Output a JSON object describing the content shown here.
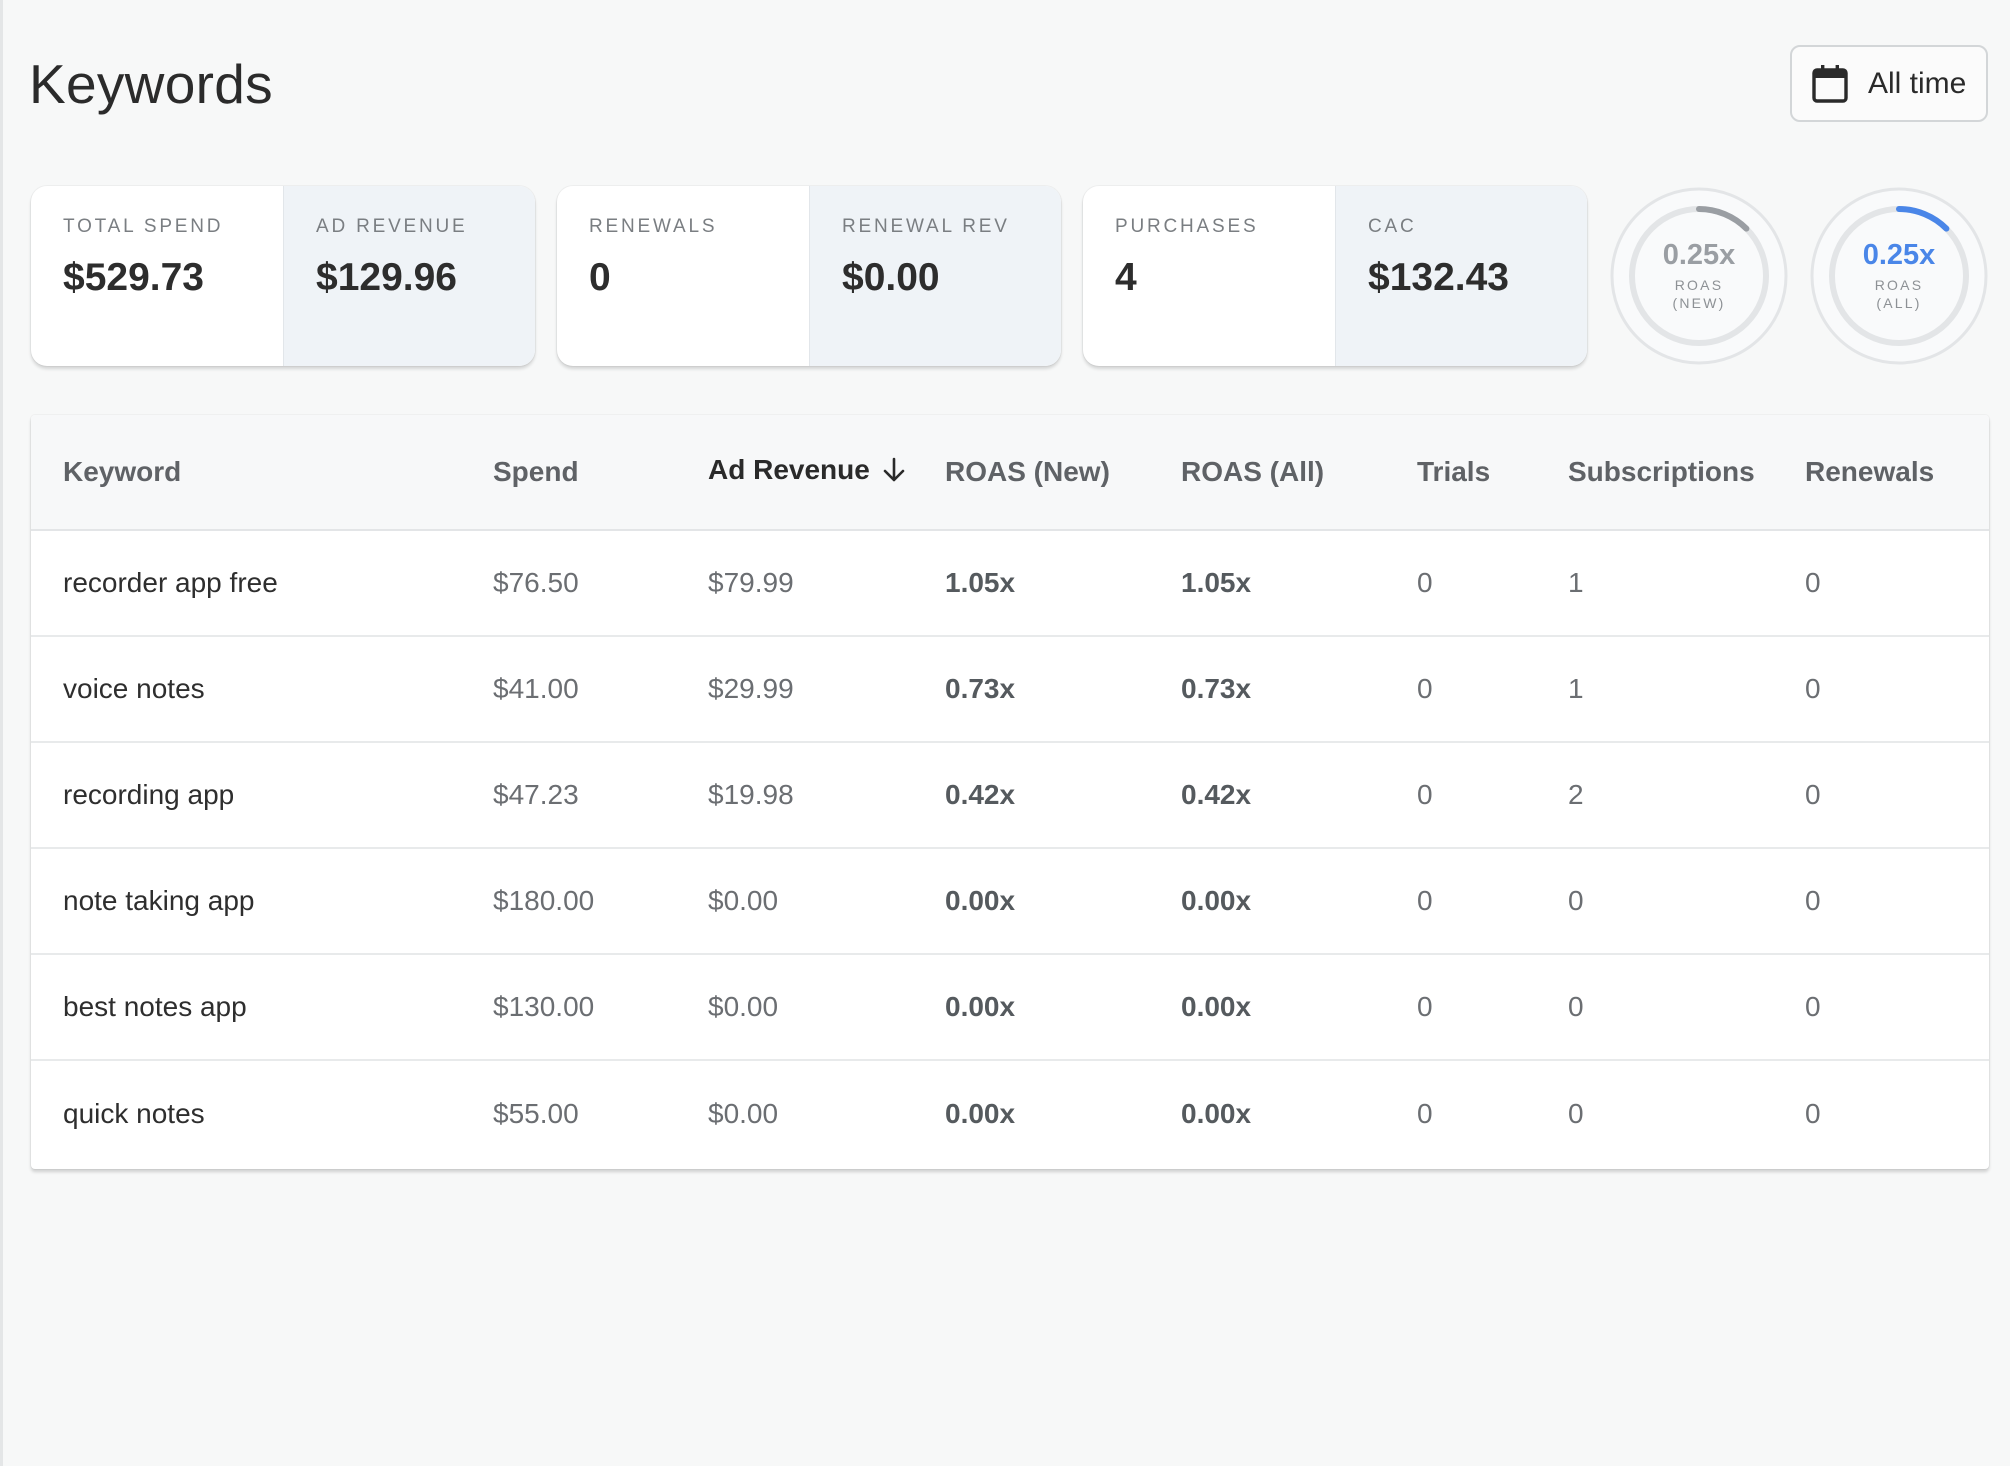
{
  "page": {
    "title": "Keywords"
  },
  "date_filter": {
    "label": "All time",
    "icon": "calendar-icon"
  },
  "stats": [
    {
      "label": "TOTAL SPEND",
      "value": "$529.73"
    },
    {
      "label": "AD REVENUE",
      "value": "$129.96"
    },
    {
      "label": "RENEWALS",
      "value": "0"
    },
    {
      "label": "RENEWAL REV",
      "value": "$0.00"
    },
    {
      "label": "PURCHASES",
      "value": "4"
    },
    {
      "label": "CAC",
      "value": "$132.43"
    }
  ],
  "gauges": [
    {
      "value": "0.25x",
      "label_line1": "ROAS",
      "label_line2": "(NEW)",
      "color": "#9a9ea3",
      "fill": 0.125
    },
    {
      "value": "0.25x",
      "label_line1": "ROAS",
      "label_line2": "(ALL)",
      "color": "#4a86e8",
      "fill": 0.125
    }
  ],
  "table": {
    "columns": [
      "Keyword",
      "Spend",
      "Ad Revenue",
      "ROAS (New)",
      "ROAS (All)",
      "Trials",
      "Subscriptions",
      "Renewals"
    ],
    "sorted_column": "Ad Revenue",
    "sort_direction": "desc",
    "rows": [
      [
        "recorder app free",
        "$76.50",
        "$79.99",
        "1.05x",
        "1.05x",
        "0",
        "1",
        "0"
      ],
      [
        "voice notes",
        "$41.00",
        "$29.99",
        "0.73x",
        "0.73x",
        "0",
        "1",
        "0"
      ],
      [
        "recording app",
        "$47.23",
        "$19.98",
        "0.42x",
        "0.42x",
        "0",
        "2",
        "0"
      ],
      [
        "note taking app",
        "$180.00",
        "$0.00",
        "0.00x",
        "0.00x",
        "0",
        "0",
        "0"
      ],
      [
        "best notes app",
        "$130.00",
        "$0.00",
        "0.00x",
        "0.00x",
        "0",
        "0",
        "0"
      ],
      [
        "quick notes",
        "$55.00",
        "$0.00",
        "0.00x",
        "0.00x",
        "0",
        "0",
        "0"
      ]
    ]
  }
}
